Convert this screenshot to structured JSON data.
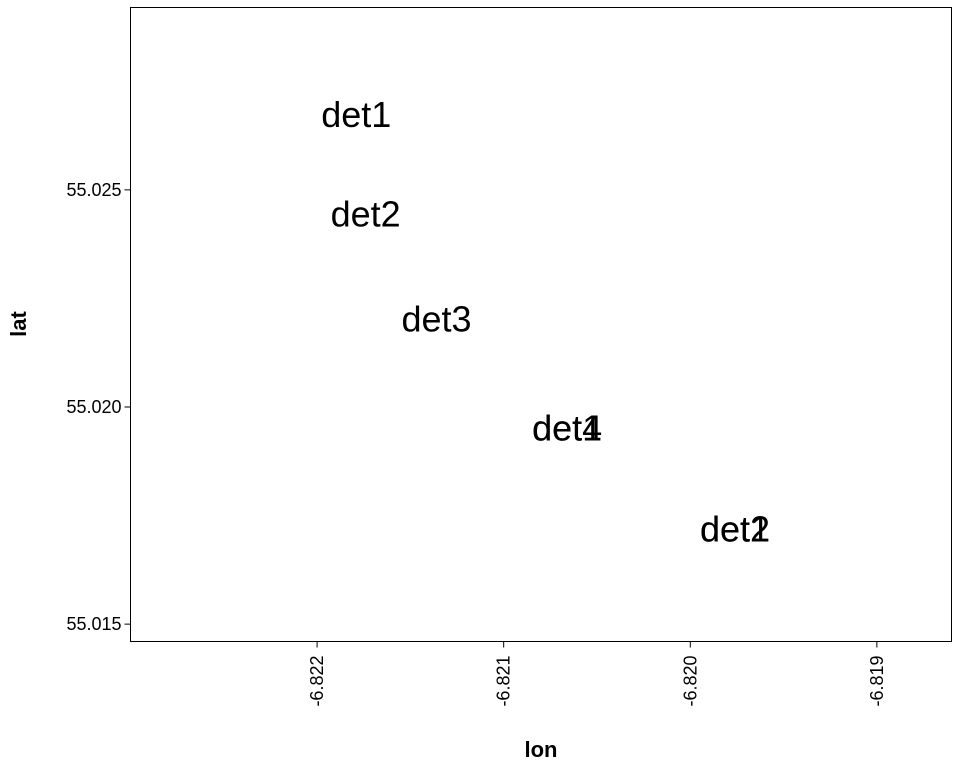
{
  "chart_data": {
    "type": "scatter",
    "xlabel": "lon",
    "ylabel": "lat",
    "xlim": [
      -6.823,
      -6.8186
    ],
    "ylim": [
      55.0146,
      55.0292
    ],
    "x_ticks": [
      {
        "value": -6.822,
        "label": "-6.822"
      },
      {
        "value": -6.821,
        "label": "-6.821"
      },
      {
        "value": -6.82,
        "label": "-6.820"
      },
      {
        "value": -6.819,
        "label": "-6.819"
      }
    ],
    "y_ticks": [
      {
        "value": 55.015,
        "label": "55.015"
      },
      {
        "value": 55.02,
        "label": "55.020"
      },
      {
        "value": 55.025,
        "label": "55.025"
      }
    ],
    "grid": false,
    "points": [
      {
        "x": -6.82179,
        "y": 55.02673,
        "label": "det1"
      },
      {
        "x": -6.82174,
        "y": 55.02443,
        "label": "det2"
      },
      {
        "x": -6.82136,
        "y": 55.02202,
        "label": "det3"
      },
      {
        "x": -6.82066,
        "y": 55.01951,
        "label": "det4"
      },
      {
        "x": -6.82066,
        "y": 55.01951,
        "label": "det1"
      },
      {
        "x": -6.81976,
        "y": 55.01718,
        "label": "det1"
      },
      {
        "x": -6.81976,
        "y": 55.01718,
        "label": "det2"
      }
    ]
  }
}
